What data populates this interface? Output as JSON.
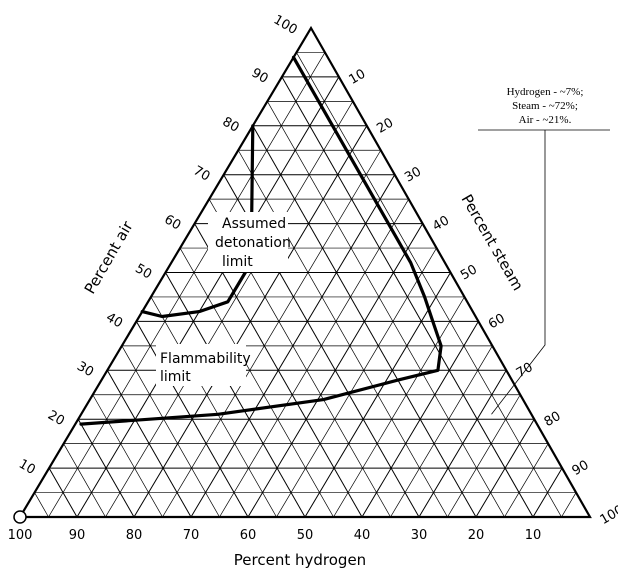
{
  "chart_data": {
    "type": "ternary",
    "axes": {
      "bottom": {
        "title": "Percent hydrogen",
        "ticks": [
          "100",
          "90",
          "80",
          "70",
          "60",
          "50",
          "40",
          "30",
          "20",
          "10"
        ]
      },
      "left": {
        "title": "Percent air",
        "ticks": [
          "10",
          "20",
          "30",
          "40",
          "50",
          "60",
          "70",
          "80",
          "90",
          "100"
        ]
      },
      "right": {
        "title": "Percent steam",
        "ticks": [
          "10",
          "20",
          "30",
          "40",
          "50",
          "60",
          "70",
          "80",
          "90",
          "100"
        ]
      }
    },
    "grid": true,
    "series": [
      {
        "name": "Assumed detonation limit",
        "label_lines": [
          "Assumed",
          "detonation",
          "limit"
        ],
        "points": [
          {
            "hydrogen": 20,
            "air": 80,
            "steam": 0
          },
          {
            "hydrogen": 25,
            "air": 70,
            "steam": 5
          },
          {
            "hydrogen": 30,
            "air": 60,
            "steam": 10
          },
          {
            "hydrogen": 36,
            "air": 50,
            "steam": 14
          },
          {
            "hydrogen": 42,
            "air": 44,
            "steam": 14
          },
          {
            "hydrogen": 48,
            "air": 42,
            "steam": 10
          },
          {
            "hydrogen": 55,
            "air": 41,
            "steam": 4
          },
          {
            "hydrogen": 58,
            "air": 42,
            "steam": 0
          }
        ]
      },
      {
        "name": "Flammability limit",
        "label_lines": [
          "Flammability",
          "limit"
        ],
        "points": [
          {
            "hydrogen": 6,
            "air": 94,
            "steam": 0
          },
          {
            "hydrogen": 6,
            "air": 80,
            "steam": 14
          },
          {
            "hydrogen": 6,
            "air": 70,
            "steam": 24
          },
          {
            "hydrogen": 6,
            "air": 60,
            "steam": 34
          },
          {
            "hydrogen": 6,
            "air": 52,
            "steam": 42
          },
          {
            "hydrogen": 7,
            "air": 45,
            "steam": 48
          },
          {
            "hydrogen": 8,
            "air": 40,
            "steam": 52
          },
          {
            "hydrogen": 9,
            "air": 35,
            "steam": 56
          },
          {
            "hydrogen": 12,
            "air": 30,
            "steam": 58
          },
          {
            "hydrogen": 20,
            "air": 28,
            "steam": 52
          },
          {
            "hydrogen": 35,
            "air": 24,
            "steam": 41
          },
          {
            "hydrogen": 55,
            "air": 21,
            "steam": 24
          },
          {
            "hydrogen": 80,
            "air": 19,
            "steam": 1
          }
        ]
      }
    ],
    "annotation": {
      "lines": [
        "Hydrogen - ~7%;",
        "Steam - ~72%;",
        "Air - ~21%."
      ],
      "point": {
        "hydrogen": 7,
        "air": 21,
        "steam": 72
      }
    },
    "marked_point": {
      "hydrogen": 100,
      "air": 0,
      "steam": 0
    }
  }
}
